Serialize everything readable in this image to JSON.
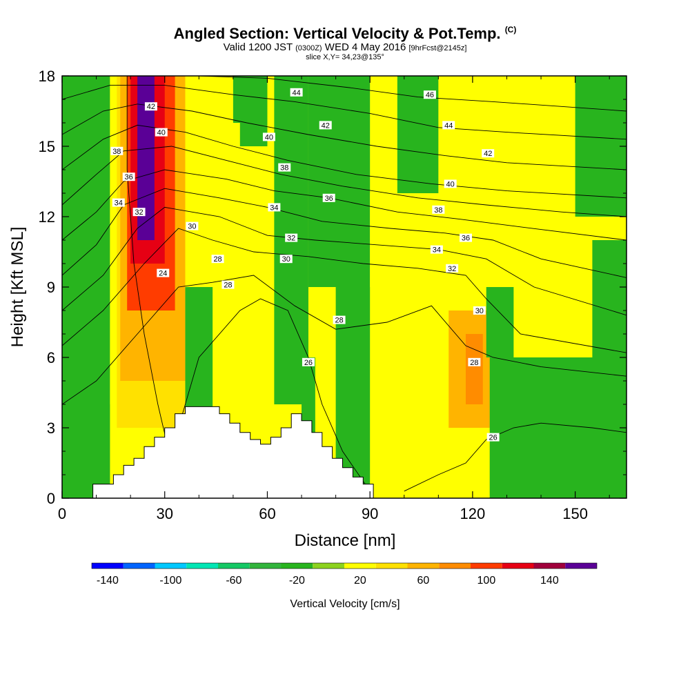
{
  "header": {
    "title": "Angled Section: Vertical Velocity & Pot.Temp.",
    "title_mark": "(C)",
    "valid_prefix": "Valid 1200 JST",
    "valid_utc": "(0300Z)",
    "valid_date": "WED 4 May 2016",
    "forecast": "[9hrFcst@2145z]",
    "slice": "slice X,Y= 34,23@135°"
  },
  "chart_data": {
    "type": "heatmap",
    "title": "Angled Section: Vertical Velocity & Pot.Temp.",
    "xlabel": "Distance [nm]",
    "ylabel": "Height [Kft MSL]",
    "xlim": [
      0,
      165
    ],
    "ylim": [
      0,
      18
    ],
    "xticks": [
      "0",
      "30",
      "60",
      "90",
      "120",
      "150"
    ],
    "xtick_values": [
      0,
      30,
      60,
      90,
      120,
      150
    ],
    "yticks": [
      "0",
      "3",
      "6",
      "9",
      "12",
      "15",
      "18"
    ],
    "ytick_values": [
      0,
      3,
      6,
      9,
      12,
      15,
      18
    ],
    "colorbar": {
      "label": "Vertical Velocity [cm/s]",
      "levels": [
        -150,
        -130,
        -110,
        -90,
        -70,
        -50,
        -30,
        -10,
        10,
        30,
        50,
        70,
        90,
        110,
        130,
        150,
        170
      ],
      "colors": [
        "#0000ff",
        "#0064ff",
        "#00c8ff",
        "#00e6b4",
        "#14c864",
        "#32b43c",
        "#28b41e",
        "#8cd21e",
        "#ffff00",
        "#ffe100",
        "#ffb400",
        "#ff8c00",
        "#ff3c00",
        "#e60014",
        "#a0003c",
        "#5a0096"
      ],
      "tick_labels": [
        "-140",
        "-100",
        "-60",
        "-20",
        "20",
        "60",
        "100",
        "140"
      ],
      "tick_values": [
        -140,
        -100,
        -60,
        -20,
        20,
        60,
        100,
        140
      ]
    },
    "velocity_cells": [
      {
        "x": [
          0,
          165
        ],
        "y": [
          0,
          18
        ],
        "w": 15
      },
      {
        "x": [
          0,
          14
        ],
        "y": [
          0,
          18
        ],
        "w": -15
      },
      {
        "x": [
          6,
          12
        ],
        "y": [
          3,
          8
        ],
        "w": -25
      },
      {
        "x": [
          14,
          20
        ],
        "y": [
          4,
          18
        ],
        "w": 20
      },
      {
        "x": [
          16,
          40
        ],
        "y": [
          3,
          18
        ],
        "w": 40
      },
      {
        "x": [
          17,
          36
        ],
        "y": [
          5,
          18
        ],
        "w": 60
      },
      {
        "x": [
          19,
          33
        ],
        "y": [
          8,
          18
        ],
        "w": 100
      },
      {
        "x": [
          20,
          30
        ],
        "y": [
          10,
          18
        ],
        "w": 120
      },
      {
        "x": [
          22,
          27
        ],
        "y": [
          11,
          18
        ],
        "w": 150
      },
      {
        "x": [
          36,
          52
        ],
        "y": [
          7,
          18
        ],
        "w": 15
      },
      {
        "x": [
          50,
          54
        ],
        "y": [
          16,
          18
        ],
        "w": -25
      },
      {
        "x": [
          52,
          60
        ],
        "y": [
          15,
          18
        ],
        "w": -15
      },
      {
        "x": [
          36,
          44
        ],
        "y": [
          3,
          9
        ],
        "w": -15
      },
      {
        "x": [
          62,
          72
        ],
        "y": [
          4,
          18
        ],
        "w": -15
      },
      {
        "x": [
          70,
          74
        ],
        "y": [
          2,
          6
        ],
        "w": -30
      },
      {
        "x": [
          72,
          90
        ],
        "y": [
          9,
          18
        ],
        "w": -15
      },
      {
        "x": [
          80,
          98
        ],
        "y": [
          0,
          9
        ],
        "w": -15
      },
      {
        "x": [
          90,
          104
        ],
        "y": [
          0,
          13
        ],
        "w": 15
      },
      {
        "x": [
          98,
          110
        ],
        "y": [
          13,
          18
        ],
        "w": -15
      },
      {
        "x": [
          108,
          130
        ],
        "y": [
          1,
          9
        ],
        "w": 25
      },
      {
        "x": [
          113,
          125
        ],
        "y": [
          3,
          8
        ],
        "w": 50
      },
      {
        "x": [
          118,
          123
        ],
        "y": [
          4,
          7
        ],
        "w": 70
      },
      {
        "x": [
          124,
          135
        ],
        "y": [
          6,
          9
        ],
        "w": -30
      },
      {
        "x": [
          125,
          165
        ],
        "y": [
          0,
          6
        ],
        "w": -15
      },
      {
        "x": [
          132,
          152
        ],
        "y": [
          6,
          18
        ],
        "w": 15
      },
      {
        "x": [
          150,
          165
        ],
        "y": [
          12,
          18
        ],
        "w": -15
      },
      {
        "x": [
          155,
          165
        ],
        "y": [
          3,
          11
        ],
        "w": -15
      }
    ],
    "terrain_nm_kft": [
      [
        0,
        0
      ],
      [
        9,
        0
      ],
      [
        9,
        0.6
      ],
      [
        15,
        0.6
      ],
      [
        15,
        1.0
      ],
      [
        18,
        1.0
      ],
      [
        18,
        1.4
      ],
      [
        21,
        1.4
      ],
      [
        21,
        1.7
      ],
      [
        24,
        1.7
      ],
      [
        24,
        2.2
      ],
      [
        27,
        2.2
      ],
      [
        27,
        2.6
      ],
      [
        30,
        2.6
      ],
      [
        30,
        3.0
      ],
      [
        33,
        3.0
      ],
      [
        33,
        3.6
      ],
      [
        36,
        3.6
      ],
      [
        36,
        3.9
      ],
      [
        39,
        3.9
      ],
      [
        39,
        3.9
      ],
      [
        46,
        3.9
      ],
      [
        46,
        3.6
      ],
      [
        49,
        3.6
      ],
      [
        49,
        3.2
      ],
      [
        52,
        3.2
      ],
      [
        52,
        2.8
      ],
      [
        55,
        2.8
      ],
      [
        55,
        2.5
      ],
      [
        58,
        2.5
      ],
      [
        58,
        2.3
      ],
      [
        61,
        2.3
      ],
      [
        61,
        2.6
      ],
      [
        64,
        2.6
      ],
      [
        64,
        3.0
      ],
      [
        67,
        3.0
      ],
      [
        67,
        3.6
      ],
      [
        70,
        3.6
      ],
      [
        70,
        3.3
      ],
      [
        73,
        3.3
      ],
      [
        73,
        2.8
      ],
      [
        76,
        2.8
      ],
      [
        76,
        2.2
      ],
      [
        79,
        2.2
      ],
      [
        79,
        1.7
      ],
      [
        82,
        1.7
      ],
      [
        82,
        1.3
      ],
      [
        85,
        1.3
      ],
      [
        85,
        0.9
      ],
      [
        88,
        0.9
      ],
      [
        88,
        0.6
      ],
      [
        91,
        0.6
      ],
      [
        91,
        0
      ],
      [
        165,
        0
      ]
    ],
    "theta_contours": [
      {
        "level": 24,
        "pts": [
          [
            19,
            18
          ],
          [
            19,
            14
          ],
          [
            21,
            10
          ],
          [
            24,
            7
          ],
          [
            28,
            4
          ],
          [
            32,
            1.5
          ]
        ]
      },
      {
        "level": 26,
        "pts": [
          [
            30,
            0
          ],
          [
            34,
            3
          ],
          [
            40,
            6
          ],
          [
            52,
            8
          ],
          [
            58,
            8.5
          ],
          [
            66,
            8
          ],
          [
            72,
            6
          ],
          [
            76,
            4
          ],
          [
            82,
            2
          ],
          [
            90,
            0.3
          ]
        ]
      },
      {
        "level": 26,
        "pts": [
          [
            100,
            0.3
          ],
          [
            110,
            1
          ],
          [
            118,
            1.5
          ],
          [
            124,
            2.5
          ],
          [
            132,
            3
          ],
          [
            140,
            3.2
          ],
          [
            155,
            3
          ],
          [
            165,
            2.8
          ]
        ]
      },
      {
        "level": 28,
        "pts": [
          [
            0,
            4
          ],
          [
            10,
            5
          ],
          [
            22,
            7
          ],
          [
            34,
            9
          ],
          [
            44,
            9.2
          ],
          [
            56,
            9.5
          ],
          [
            68,
            8.2
          ],
          [
            80,
            7.2
          ],
          [
            95,
            7.5
          ],
          [
            108,
            8.2
          ],
          [
            118,
            6.5
          ],
          [
            126,
            6
          ],
          [
            140,
            5.6
          ],
          [
            165,
            5.2
          ]
        ]
      },
      {
        "level": 30,
        "pts": [
          [
            0,
            6.5
          ],
          [
            12,
            8
          ],
          [
            24,
            10
          ],
          [
            34,
            11.5
          ],
          [
            44,
            11
          ],
          [
            56,
            10.5
          ],
          [
            72,
            10.3
          ],
          [
            88,
            10
          ],
          [
            104,
            9.8
          ],
          [
            118,
            9.5
          ],
          [
            124,
            8.5
          ],
          [
            134,
            7
          ],
          [
            165,
            6.2
          ]
        ]
      },
      {
        "level": 32,
        "pts": [
          [
            0,
            8
          ],
          [
            12,
            9.5
          ],
          [
            22,
            11.5
          ],
          [
            30,
            12.4
          ],
          [
            46,
            12
          ],
          [
            60,
            11.2
          ],
          [
            74,
            11
          ],
          [
            92,
            10.8
          ],
          [
            110,
            10.6
          ],
          [
            124,
            10.2
          ],
          [
            138,
            9
          ],
          [
            165,
            7.8
          ]
        ]
      },
      {
        "level": 34,
        "pts": [
          [
            0,
            9.5
          ],
          [
            10,
            10.8
          ],
          [
            18,
            12.5
          ],
          [
            30,
            13.2
          ],
          [
            46,
            12.8
          ],
          [
            60,
            12.4
          ],
          [
            76,
            11.8
          ],
          [
            96,
            11.5
          ],
          [
            112,
            11.3
          ],
          [
            126,
            11
          ],
          [
            140,
            10.2
          ],
          [
            165,
            9.4
          ]
        ]
      },
      {
        "level": 36,
        "pts": [
          [
            0,
            11
          ],
          [
            10,
            12.2
          ],
          [
            18,
            13.5
          ],
          [
            30,
            14
          ],
          [
            48,
            13.6
          ],
          [
            62,
            13.1
          ],
          [
            78,
            12.8
          ],
          [
            98,
            12.2
          ],
          [
            116,
            11.9
          ],
          [
            132,
            11.6
          ],
          [
            165,
            11
          ]
        ]
      },
      {
        "level": 38,
        "pts": [
          [
            0,
            12.5
          ],
          [
            10,
            13.8
          ],
          [
            18,
            14.8
          ],
          [
            32,
            15
          ],
          [
            48,
            14.4
          ],
          [
            64,
            13.8
          ],
          [
            82,
            13.3
          ],
          [
            104,
            12.8
          ],
          [
            124,
            12.5
          ],
          [
            146,
            12.2
          ],
          [
            165,
            12
          ]
        ]
      },
      {
        "level": 40,
        "pts": [
          [
            0,
            14
          ],
          [
            12,
            15.3
          ],
          [
            22,
            15.9
          ],
          [
            36,
            15.6
          ],
          [
            50,
            15
          ],
          [
            66,
            14.4
          ],
          [
            86,
            13.8
          ],
          [
            108,
            13.4
          ],
          [
            130,
            13.1
          ],
          [
            165,
            12.8
          ]
        ]
      },
      {
        "level": 42,
        "pts": [
          [
            0,
            15.5
          ],
          [
            12,
            16.5
          ],
          [
            22,
            16.8
          ],
          [
            38,
            16.5
          ],
          [
            54,
            16
          ],
          [
            72,
            15.5
          ],
          [
            92,
            15
          ],
          [
            112,
            14.6
          ],
          [
            130,
            14.3
          ],
          [
            165,
            14
          ]
        ]
      },
      {
        "level": 44,
        "pts": [
          [
            0,
            17
          ],
          [
            14,
            17.6
          ],
          [
            30,
            17.6
          ],
          [
            50,
            17.2
          ],
          [
            68,
            16.9
          ],
          [
            90,
            16.4
          ],
          [
            110,
            15.8
          ],
          [
            130,
            15.6
          ],
          [
            165,
            15.3
          ]
        ]
      },
      {
        "level": 46,
        "pts": [
          [
            40,
            18
          ],
          [
            60,
            17.9
          ],
          [
            84,
            17.5
          ],
          [
            104,
            17.1
          ],
          [
            126,
            16.9
          ],
          [
            165,
            16.5
          ]
        ]
      }
    ],
    "contour_labels": [
      {
        "text": "42",
        "x": 26,
        "y": 16.7
      },
      {
        "text": "40",
        "x": 29,
        "y": 15.6
      },
      {
        "text": "38",
        "x": 16,
        "y": 14.8
      },
      {
        "text": "36",
        "x": 19.5,
        "y": 13.7
      },
      {
        "text": "34",
        "x": 16.5,
        "y": 12.6
      },
      {
        "text": "32",
        "x": 22.5,
        "y": 12.2
      },
      {
        "text": "30",
        "x": 38,
        "y": 11.6
      },
      {
        "text": "28",
        "x": 45.5,
        "y": 10.2
      },
      {
        "text": "28",
        "x": 48.5,
        "y": 9.1
      },
      {
        "text": "24",
        "x": 29.5,
        "y": 9.6
      },
      {
        "text": "44",
        "x": 68.5,
        "y": 17.3
      },
      {
        "text": "40",
        "x": 60.5,
        "y": 15.4
      },
      {
        "text": "42",
        "x": 77,
        "y": 15.9
      },
      {
        "text": "38",
        "x": 65,
        "y": 14.1
      },
      {
        "text": "36",
        "x": 78,
        "y": 12.8
      },
      {
        "text": "34",
        "x": 62,
        "y": 12.4
      },
      {
        "text": "32",
        "x": 67,
        "y": 11.1
      },
      {
        "text": "30",
        "x": 65.5,
        "y": 10.2
      },
      {
        "text": "28",
        "x": 81,
        "y": 7.6
      },
      {
        "text": "26",
        "x": 72,
        "y": 5.8
      },
      {
        "text": "46",
        "x": 107.5,
        "y": 17.2
      },
      {
        "text": "44",
        "x": 113,
        "y": 15.9
      },
      {
        "text": "42",
        "x": 124.5,
        "y": 14.7
      },
      {
        "text": "40",
        "x": 113.5,
        "y": 13.4
      },
      {
        "text": "38",
        "x": 110,
        "y": 12.3
      },
      {
        "text": "36",
        "x": 118,
        "y": 11.1
      },
      {
        "text": "34",
        "x": 109.5,
        "y": 10.6
      },
      {
        "text": "32",
        "x": 114,
        "y": 9.8
      },
      {
        "text": "30",
        "x": 122,
        "y": 8
      },
      {
        "text": "28",
        "x": 120.5,
        "y": 5.8
      },
      {
        "text": "26",
        "x": 126,
        "y": 2.6
      }
    ]
  }
}
